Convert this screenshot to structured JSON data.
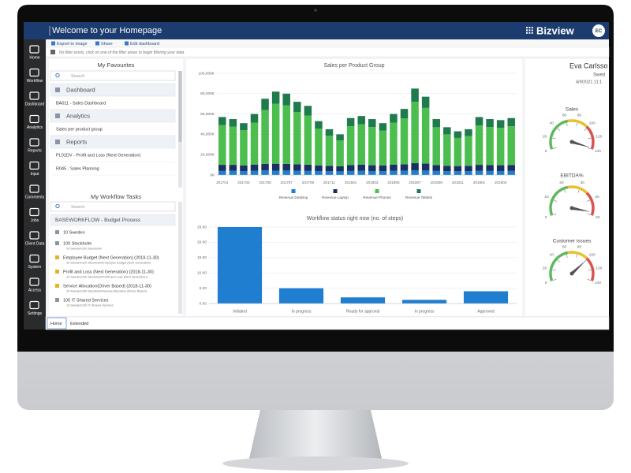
{
  "header": {
    "title": "Welcome to your Homepage",
    "logo": "Bizview",
    "avatar": "EC"
  },
  "toolbar": [
    "Export to image",
    "Share",
    "Edit dashboard"
  ],
  "filter_bar": "No filter exists, click on one of the filter areas to begin filtering your data.",
  "sidebar": [
    "Home",
    "Workflow",
    "Dashboard",
    "Analytics",
    "Reports",
    "Input",
    "Comments",
    "Jobs",
    "Client Data",
    "System",
    "Access",
    "Settings"
  ],
  "favourites": {
    "title": "My Favourites",
    "search": "Search",
    "groups": [
      {
        "name": "Dashboard",
        "items": [
          "BA011 - Sales Dashboard"
        ]
      },
      {
        "name": "Analytics",
        "items": [
          "Sales per product group"
        ]
      },
      {
        "name": "Reports",
        "items": [
          "PL01DV - Profit and Loss (Next Generation)",
          "R045 - Sales Planning"
        ]
      }
    ]
  },
  "workflow_tasks": {
    "title": "My Workflow Tasks",
    "search": "Search",
    "process": "BASEWORKFLOW - Budget Process",
    "items": [
      {
        "label": "10 Sweden"
      },
      {
        "label": "100 Stockholm",
        "path": "10 Sweden/100 Stockholm"
      },
      {
        "label": "Employee Budget (Next Generation) (2018-11-30)",
        "path": "10 Sweden/100 Stockholm/Employee Budget (Next Generation)"
      },
      {
        "label": "Profit and Loss (Next Generation) (2018-11-30)",
        "path": "10 Sweden/100 Stockholm/Profit and Loss (Next Generation)"
      },
      {
        "label": "Service Allocation(Driver Based) (2018-11-30)",
        "path": "10 Sweden/100 Stockholm/Service Allocation (Driver Based)"
      },
      {
        "label": "105 IT Shared Services",
        "path": "10 Sweden/105 IT Shared Services"
      }
    ]
  },
  "tabs": [
    "Home",
    "Extended"
  ],
  "user": {
    "name": "Eva Carlsso",
    "country": "Swed",
    "date": "4/9/2021 11:1"
  },
  "chart_data": [
    {
      "type": "stacked_bar",
      "title": "Sales per Product Group",
      "categories": [
        "201701",
        null,
        "201703",
        null,
        "201705",
        null,
        "201707",
        null,
        "201709",
        null,
        "201711",
        null,
        "201801",
        null,
        "201803",
        null,
        "201805",
        null,
        "201807",
        null,
        "201809",
        null,
        "201811",
        null,
        "201901",
        null,
        "201903",
        null
      ],
      "series": [
        {
          "name": "Revenue Desktop",
          "color": "#1f7ed0",
          "values": [
            4000,
            4200,
            3800,
            4100,
            4500,
            4300,
            4400,
            4200,
            4000,
            3900,
            3700,
            3600,
            4000,
            4100,
            3900,
            3800,
            4200,
            4300,
            4600,
            4400,
            4000,
            3800,
            3700,
            3800,
            4100,
            4000,
            3900,
            4000
          ]
        },
        {
          "name": "Revenue Laptop",
          "color": "#1b2f63",
          "values": [
            6000,
            5800,
            5500,
            6200,
            6500,
            6800,
            6600,
            6400,
            6200,
            5600,
            5200,
            5000,
            5800,
            6000,
            5700,
            5500,
            6100,
            6300,
            7000,
            6800,
            5800,
            5300,
            5100,
            5200,
            5900,
            5800,
            5700,
            5800
          ]
        },
        {
          "name": "Revenue Phones",
          "color": "#4cbd4f",
          "values": [
            39000,
            37500,
            34700,
            41200,
            53000,
            58900,
            57500,
            51400,
            48300,
            36000,
            29600,
            25400,
            38200,
            39700,
            37600,
            34500,
            41200,
            45200,
            60400,
            54800,
            37200,
            30900,
            27700,
            29200,
            38700,
            37400,
            36800,
            38200
          ]
        },
        {
          "name": "Revenue Tablets",
          "color": "#1f7a4c",
          "values": [
            8000,
            7500,
            7000,
            8500,
            11000,
            12000,
            11500,
            10000,
            9500,
            7500,
            6500,
            6000,
            8000,
            8200,
            7800,
            7200,
            8500,
            9200,
            13000,
            11000,
            8000,
            7000,
            6500,
            6800,
            8300,
            7800,
            7600,
            8000
          ]
        }
      ],
      "ylim": [
        0,
        100000
      ],
      "yticks": [
        {
          "value": 0,
          "label": "0K"
        },
        {
          "value": 20000,
          "label": "20,000K"
        },
        {
          "value": 40000,
          "label": "40,000K"
        },
        {
          "value": 60000,
          "label": "60,000K"
        },
        {
          "value": 80000,
          "label": "80,000K"
        },
        {
          "value": 100000,
          "label": "100,000K"
        }
      ],
      "grid": true
    },
    {
      "type": "bar",
      "title": "Workflow status right now (no. of steps)",
      "categories": [
        "Initiated",
        "In progress",
        "Ready for approval",
        "In progress",
        "Approved"
      ],
      "values": [
        25,
        5,
        2,
        1.2,
        4
      ],
      "color": "#1f7ed0",
      "ylim": [
        0,
        25
      ],
      "yticks": [
        {
          "value": 0,
          "label": "0.00"
        },
        {
          "value": 5,
          "label": "5.00"
        },
        {
          "value": 10,
          "label": "10.00"
        },
        {
          "value": 15,
          "label": "15.00"
        },
        {
          "value": 20,
          "label": "20.00"
        },
        {
          "value": 25,
          "label": "25.00"
        }
      ],
      "grid": true
    },
    {
      "type": "gauge",
      "title": "Sales",
      "value": 138,
      "ylim": [
        0,
        140
      ],
      "yticks": [
        0,
        20,
        40,
        60,
        80,
        100,
        120,
        140
      ]
    },
    {
      "type": "gauge",
      "title": "EBITDA%",
      "value": 48,
      "ylim": [
        0,
        50
      ],
      "yticks": [
        0,
        10,
        20,
        30,
        40,
        50
      ]
    },
    {
      "type": "gauge",
      "title": "Customer issues",
      "value": 100,
      "ylim": [
        0,
        140
      ],
      "yticks": [
        0,
        20,
        40,
        60,
        80,
        100,
        120,
        140
      ]
    }
  ]
}
